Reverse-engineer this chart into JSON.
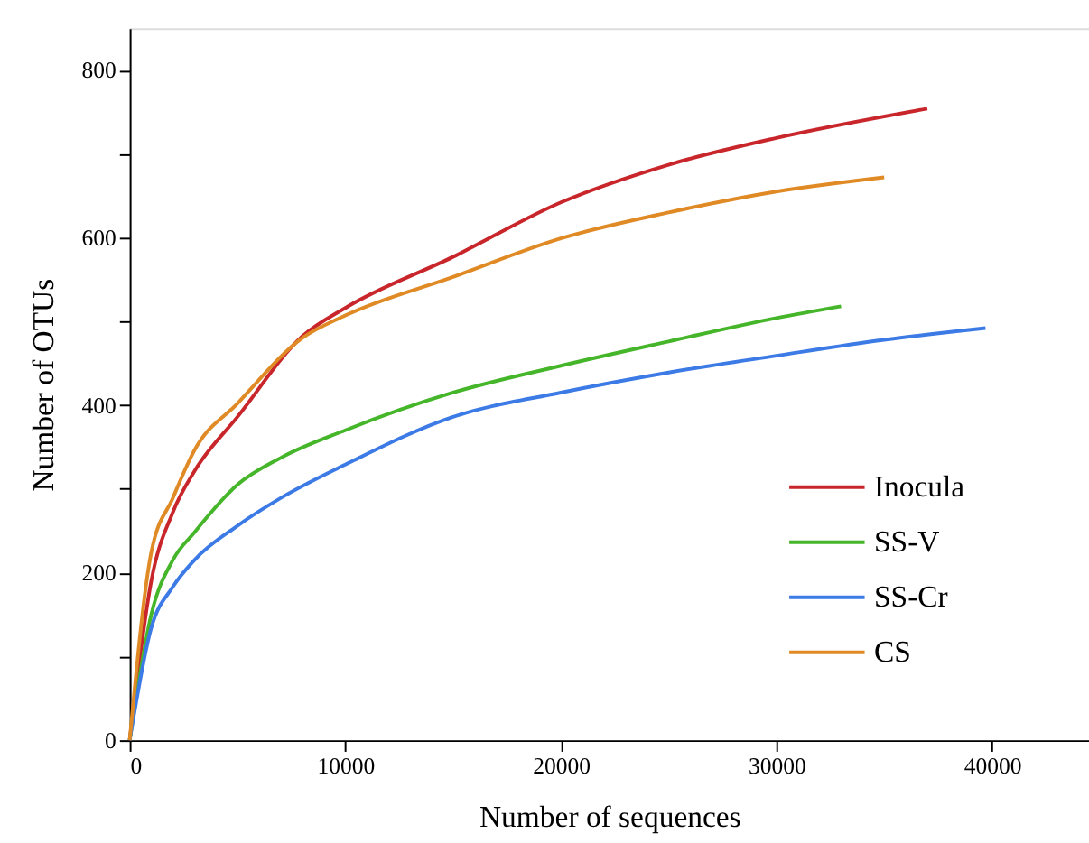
{
  "chart_data": {
    "type": "line",
    "xlabel": "Number of sequences",
    "ylabel": "Number of OTUs",
    "xlim": [
      0,
      44500
    ],
    "ylim": [
      0,
      850
    ],
    "xticks": [
      0,
      10000,
      20000,
      30000,
      40000
    ],
    "yticks": [
      0,
      {
        "value": 100,
        "label": null
      },
      200,
      {
        "value": 300,
        "label": null
      },
      400,
      {
        "value": 500,
        "label": null
      },
      600,
      {
        "value": 700,
        "label": null
      },
      800
    ],
    "grid": false,
    "legend": "bottom right",
    "marker": "none",
    "line_style": "solid",
    "series": [
      {
        "name": "Inocula",
        "color": "#c8262b",
        "x": [
          0,
          1000,
          2000,
          3000,
          5000,
          8000,
          10000,
          15000,
          20000,
          25000,
          30000,
          37000
        ],
        "values": [
          0,
          190,
          272,
          321,
          386,
          482,
          516,
          577,
          642,
          687,
          719,
          754
        ]
      },
      {
        "name": "SS-V",
        "color": "#45b52a",
        "x": [
          0,
          1000,
          2000,
          3000,
          5000,
          7000,
          10000,
          15000,
          20000,
          25000,
          30000,
          33000
        ],
        "values": [
          0,
          150,
          215,
          248,
          305,
          337,
          370,
          415,
          447,
          476,
          504,
          518
        ]
      },
      {
        "name": "SS-Cr",
        "color": "#3c7ae6",
        "x": [
          0,
          1000,
          2000,
          3000,
          5000,
          7000,
          10000,
          15000,
          20000,
          25000,
          30000,
          35000,
          39700
        ],
        "values": [
          0,
          134,
          183,
          215,
          256,
          289,
          329,
          386,
          415,
          439,
          459,
          478,
          492
        ]
      },
      {
        "name": "CS",
        "color": "#e08a25",
        "x": [
          0,
          1000,
          2000,
          3000,
          5000,
          8000,
          10000,
          15000,
          20000,
          25000,
          30000,
          35000
        ],
        "values": [
          0,
          224,
          289,
          346,
          402,
          480,
          507,
          553,
          599,
          630,
          655,
          672
        ]
      }
    ]
  }
}
